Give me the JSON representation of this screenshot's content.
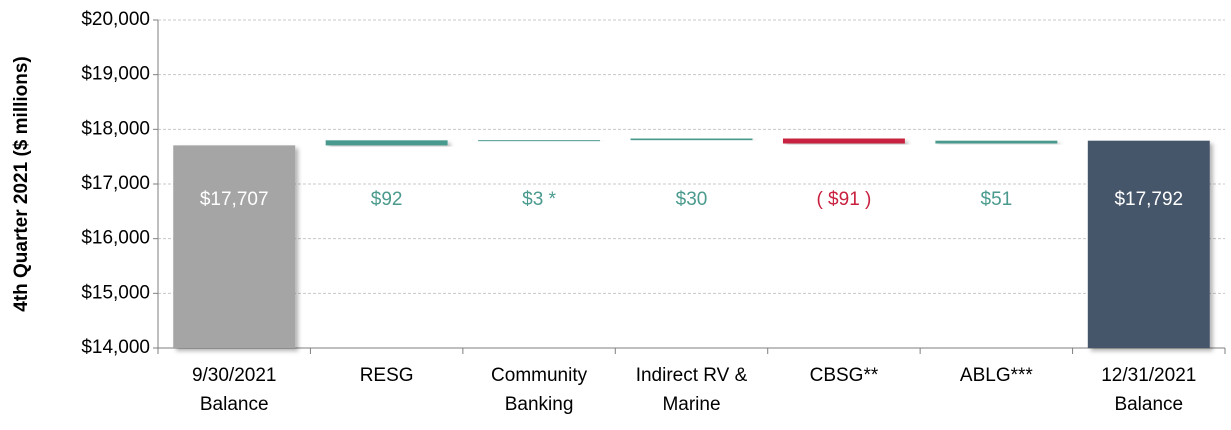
{
  "chart_data": {
    "type": "waterfall",
    "y_label": "4th Quarter 2021 ($ millions)",
    "categories": [
      [
        "9/30/2021",
        "Balance"
      ],
      [
        "RESG"
      ],
      [
        "Community",
        "Banking"
      ],
      [
        "Indirect RV &",
        "Marine"
      ],
      [
        "CBSG**"
      ],
      [
        "ABLG***"
      ],
      [
        "12/31/2021",
        "Balance"
      ]
    ],
    "kinds": [
      "total",
      "delta",
      "delta",
      "delta",
      "delta",
      "delta",
      "total"
    ],
    "values": [
      17707,
      92,
      3,
      30,
      -91,
      51,
      17792
    ],
    "value_labels": [
      "$17,707",
      "$92",
      "$3 *",
      "$30",
      "( $91 )",
      "$51",
      "$17,792"
    ],
    "colors": {
      "start": "#a5a5a5",
      "end": "#44546a",
      "increase": "#4a9a8e",
      "decrease": "#c9203f"
    },
    "ylim": [
      14000,
      20000
    ],
    "yticks": [
      {
        "value": 14000,
        "label": "$14,000"
      },
      {
        "value": 15000,
        "label": "$15,000"
      },
      {
        "value": 16000,
        "label": "$16,000"
      },
      {
        "value": 17000,
        "label": "$17,000"
      },
      {
        "value": 18000,
        "label": "$18,000"
      },
      {
        "value": 19000,
        "label": "$19,000"
      },
      {
        "value": 20000,
        "label": "$20,000"
      }
    ],
    "grid": true
  }
}
